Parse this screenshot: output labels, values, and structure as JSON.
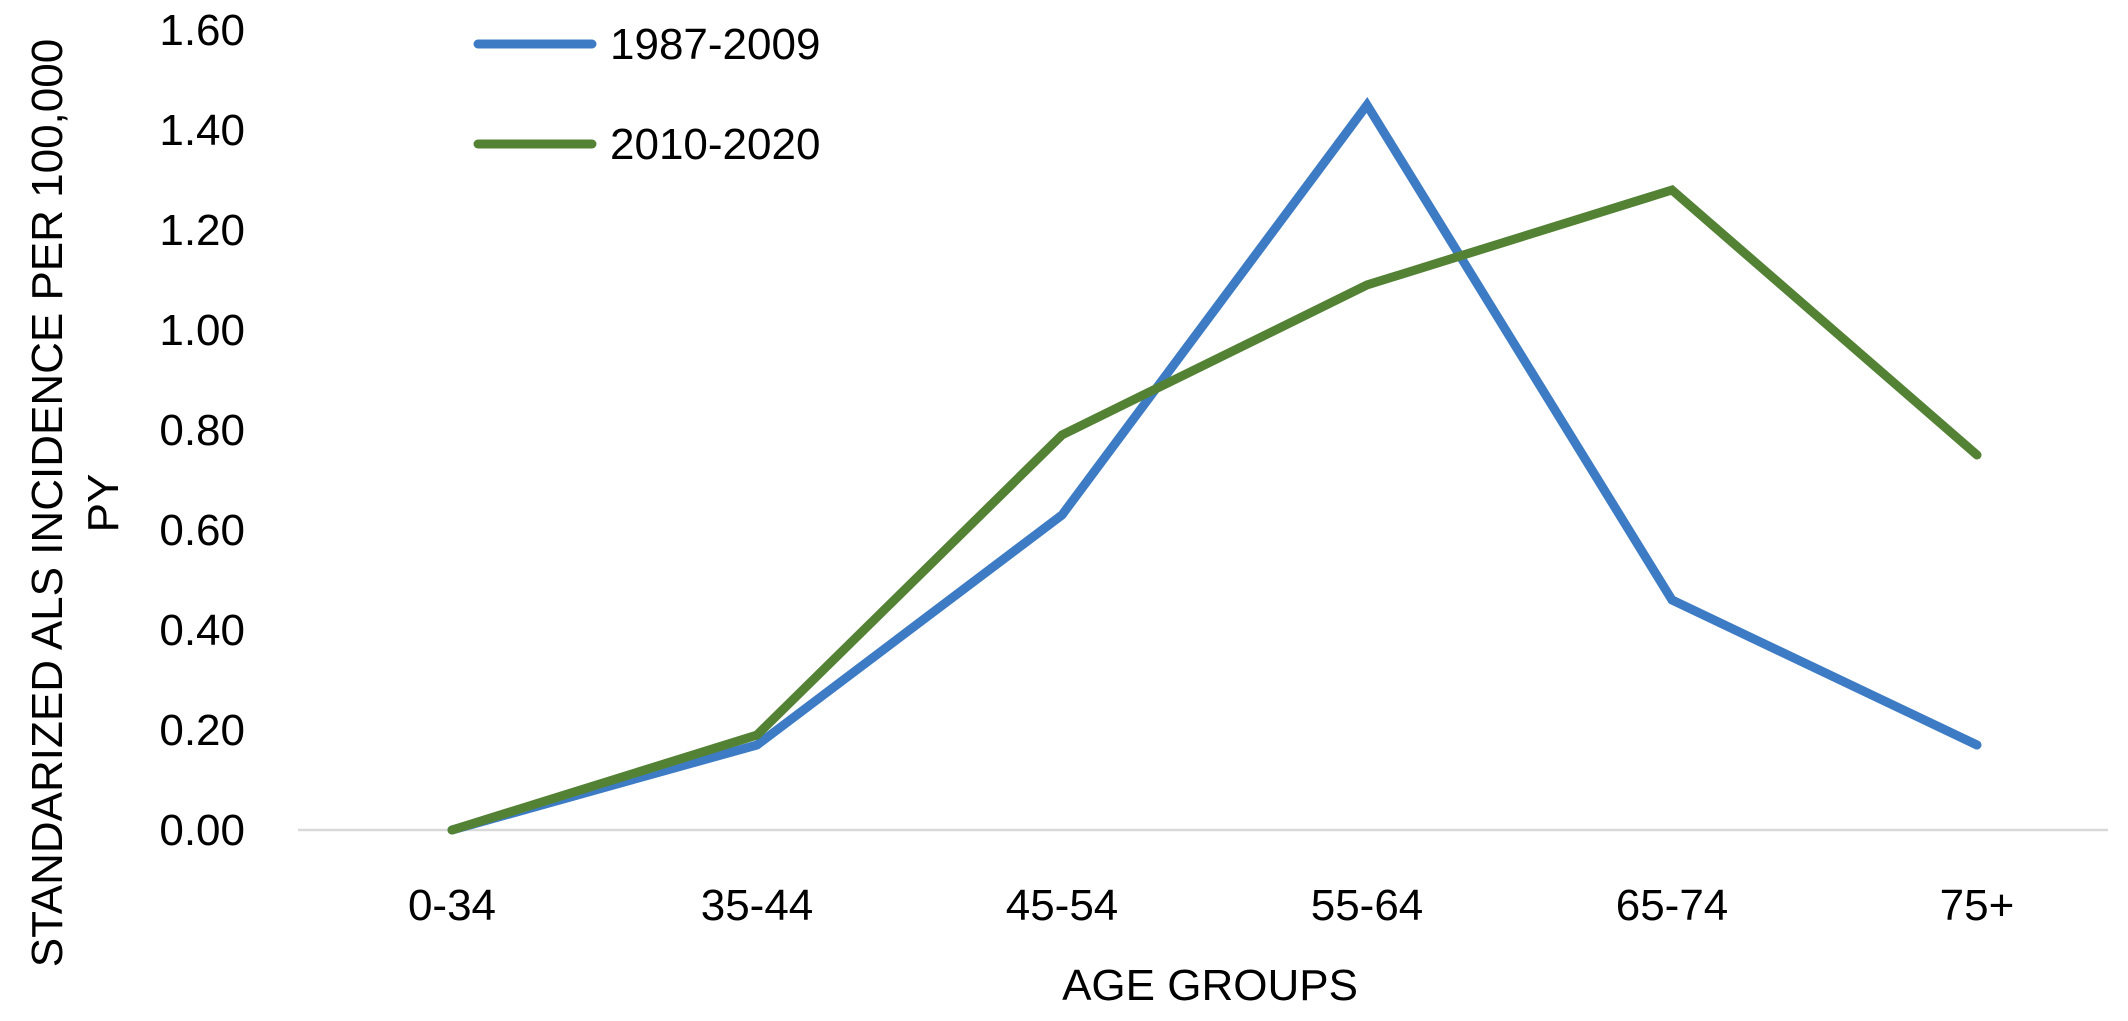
{
  "chart_data": {
    "type": "line",
    "title": "",
    "xlabel": "AGE GROUPS",
    "ylabel_lines": [
      "STANDARIZED ALS INCIDENCE PER 100,000",
      "PY"
    ],
    "categories": [
      "0-34",
      "35-44",
      "45-54",
      "55-64",
      "65-74",
      "75+"
    ],
    "ylim": [
      0,
      1.6
    ],
    "yticks": [
      "0.00",
      "0.20",
      "0.40",
      "0.60",
      "0.80",
      "1.00",
      "1.20",
      "1.40",
      "1.60"
    ],
    "grid": false,
    "legend_position": "top-left",
    "series": [
      {
        "name": "1987-2009",
        "color": "#3d7cc4",
        "values": [
          0.0,
          0.17,
          0.63,
          1.45,
          0.46,
          0.17
        ]
      },
      {
        "name": "2010-2020",
        "color": "#548235",
        "values": [
          0.0,
          0.19,
          0.79,
          1.09,
          1.28,
          0.75
        ]
      }
    ],
    "baseline_color": "#d9d9d9"
  }
}
